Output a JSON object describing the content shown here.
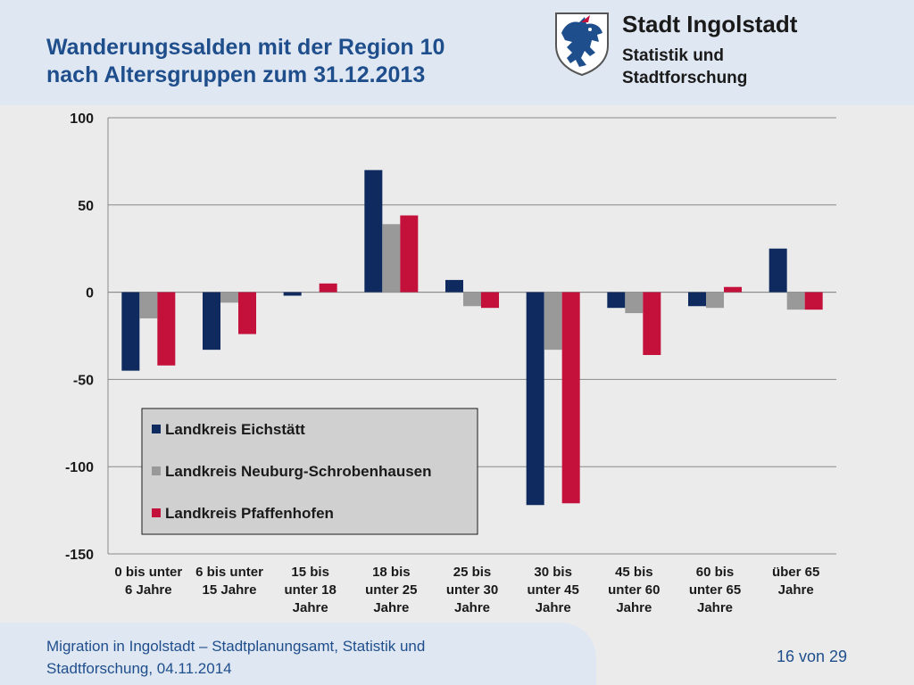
{
  "header": {
    "title_line1": "Wanderungssalden mit der Region 10",
    "title_line2": "nach Altersgruppen zum 31.12.2013",
    "org_name": "Stadt Ingolstadt",
    "org_sub_line1": "Statistik und",
    "org_sub_line2": "Stadtforschung",
    "crest_icon": "coat-of-arms-panther-icon"
  },
  "footer": {
    "line1": "Migration in Ingolstadt – Stadtplanungsamt, Statistik und",
    "line2": "Stadtforschung, 04.11.2014",
    "page": "16 von 29"
  },
  "colors": {
    "eichstaett": "#0e2a5e",
    "neuburg": "#999999",
    "pfaffenhofen": "#c3113c",
    "header_bg": "#dfe7f2",
    "title": "#1f4e8c"
  },
  "chart_data": {
    "type": "bar",
    "title": "",
    "xlabel": "",
    "ylabel": "",
    "ylim": [
      -150,
      100
    ],
    "yticks": [
      100,
      50,
      0,
      -50,
      -100,
      -150
    ],
    "grid": true,
    "legend_position": "center-left",
    "categories": [
      [
        "0 bis unter",
        "6 Jahre"
      ],
      [
        "6 bis unter",
        "15 Jahre"
      ],
      [
        "15 bis",
        "unter 18",
        "Jahre"
      ],
      [
        "18 bis",
        "unter 25",
        "Jahre"
      ],
      [
        "25 bis",
        "unter 30",
        "Jahre"
      ],
      [
        "30 bis",
        "unter 45",
        "Jahre"
      ],
      [
        "45 bis",
        "unter 60",
        "Jahre"
      ],
      [
        "60 bis",
        "unter 65",
        "Jahre"
      ],
      [
        "über 65",
        "Jahre"
      ]
    ],
    "series": [
      {
        "name": "Landkreis Eichstätt",
        "color": "#0e2a5e",
        "values": [
          -45,
          -33,
          -2,
          70,
          7,
          -122,
          -9,
          -8,
          25
        ]
      },
      {
        "name": "Landkreis Neuburg-Schrobenhausen",
        "color": "#999999",
        "values": [
          -15,
          -6,
          0,
          39,
          -8,
          -33,
          -12,
          -9,
          -10
        ]
      },
      {
        "name": "Landkreis Pfaffenhofen",
        "color": "#c3113c",
        "values": [
          -42,
          -24,
          5,
          44,
          -9,
          -121,
          -36,
          3,
          -10
        ]
      }
    ]
  }
}
